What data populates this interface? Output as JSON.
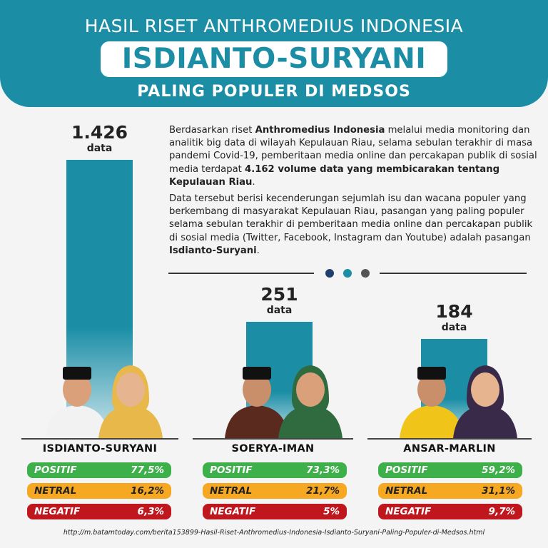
{
  "header": {
    "title": "HASIL RISET ANTHROMEDIUS INDONESIA",
    "highlight": "ISDIANTO-SURYANI",
    "subtitle": "PALING POPULER DI MEDSOS"
  },
  "paragraphs": {
    "p1": [
      {
        "t": "Berdasarkan riset ",
        "b": false
      },
      {
        "t": "Anthromedius Indonesia",
        "b": true
      },
      {
        "t": " melalui media monitoring dan analitik big data di wilayah Kepulauan Riau, selama sebulan terakhir di masa pandemi Covid-19, pemberitaan media online dan percakapan publik di sosial media terdapat ",
        "b": false
      },
      {
        "t": "4.162 volume data yang membicarakan tentang Kepulauan Riau",
        "b": true
      },
      {
        "t": ".",
        "b": false
      }
    ],
    "p2": [
      {
        "t": "Data tersebut berisi kecenderungan sejumlah isu dan wacana populer yang berkembang di masyarakat Kepulauan Riau, pasangan yang paling populer selama sebulan terakhir di pemberitaan media online dan percakapan publik di sosial media (Twitter, Facebook, Instagram dan Youtube) adalah pasangan ",
        "b": false
      },
      {
        "t": "Isdianto-Suryani",
        "b": true
      },
      {
        "t": ".",
        "b": false
      }
    ]
  },
  "divider_dot_colors": [
    "#1f3f6e",
    "#1b8ea6",
    "#555555"
  ],
  "chart_data": {
    "type": "bar",
    "categories": [
      "ISDIANTO-SURYANI",
      "SOERYA-IMAN",
      "ANSAR-MARLIN"
    ],
    "values": [
      1426,
      251,
      184
    ],
    "value_labels": [
      "1.426",
      "251",
      "184"
    ],
    "unit": "data",
    "bar_color": "#1b8ea6",
    "sentiment": [
      {
        "positif": "77,5%",
        "netral": "16,2%",
        "negatif": "6,3%"
      },
      {
        "positif": "73,3%",
        "netral": "21,7%",
        "negatif": "5%"
      },
      {
        "positif": "59,2%",
        "netral": "31,1%",
        "negatif": "9,7%"
      }
    ],
    "sentiment_labels": {
      "positif": "POSITIF",
      "netral": "NETRAL",
      "negatif": "NEGATIF"
    },
    "sentiment_colors": {
      "positif": "#3db049",
      "netral": "#f7a823",
      "negatif": "#c0161d"
    }
  },
  "source": "http://m.batamtoday.com/berita153899-Hasil-Riset-Anthromedius-Indonesia-Isdianto-Suryani-Paling-Populer-di-Medsos.html"
}
